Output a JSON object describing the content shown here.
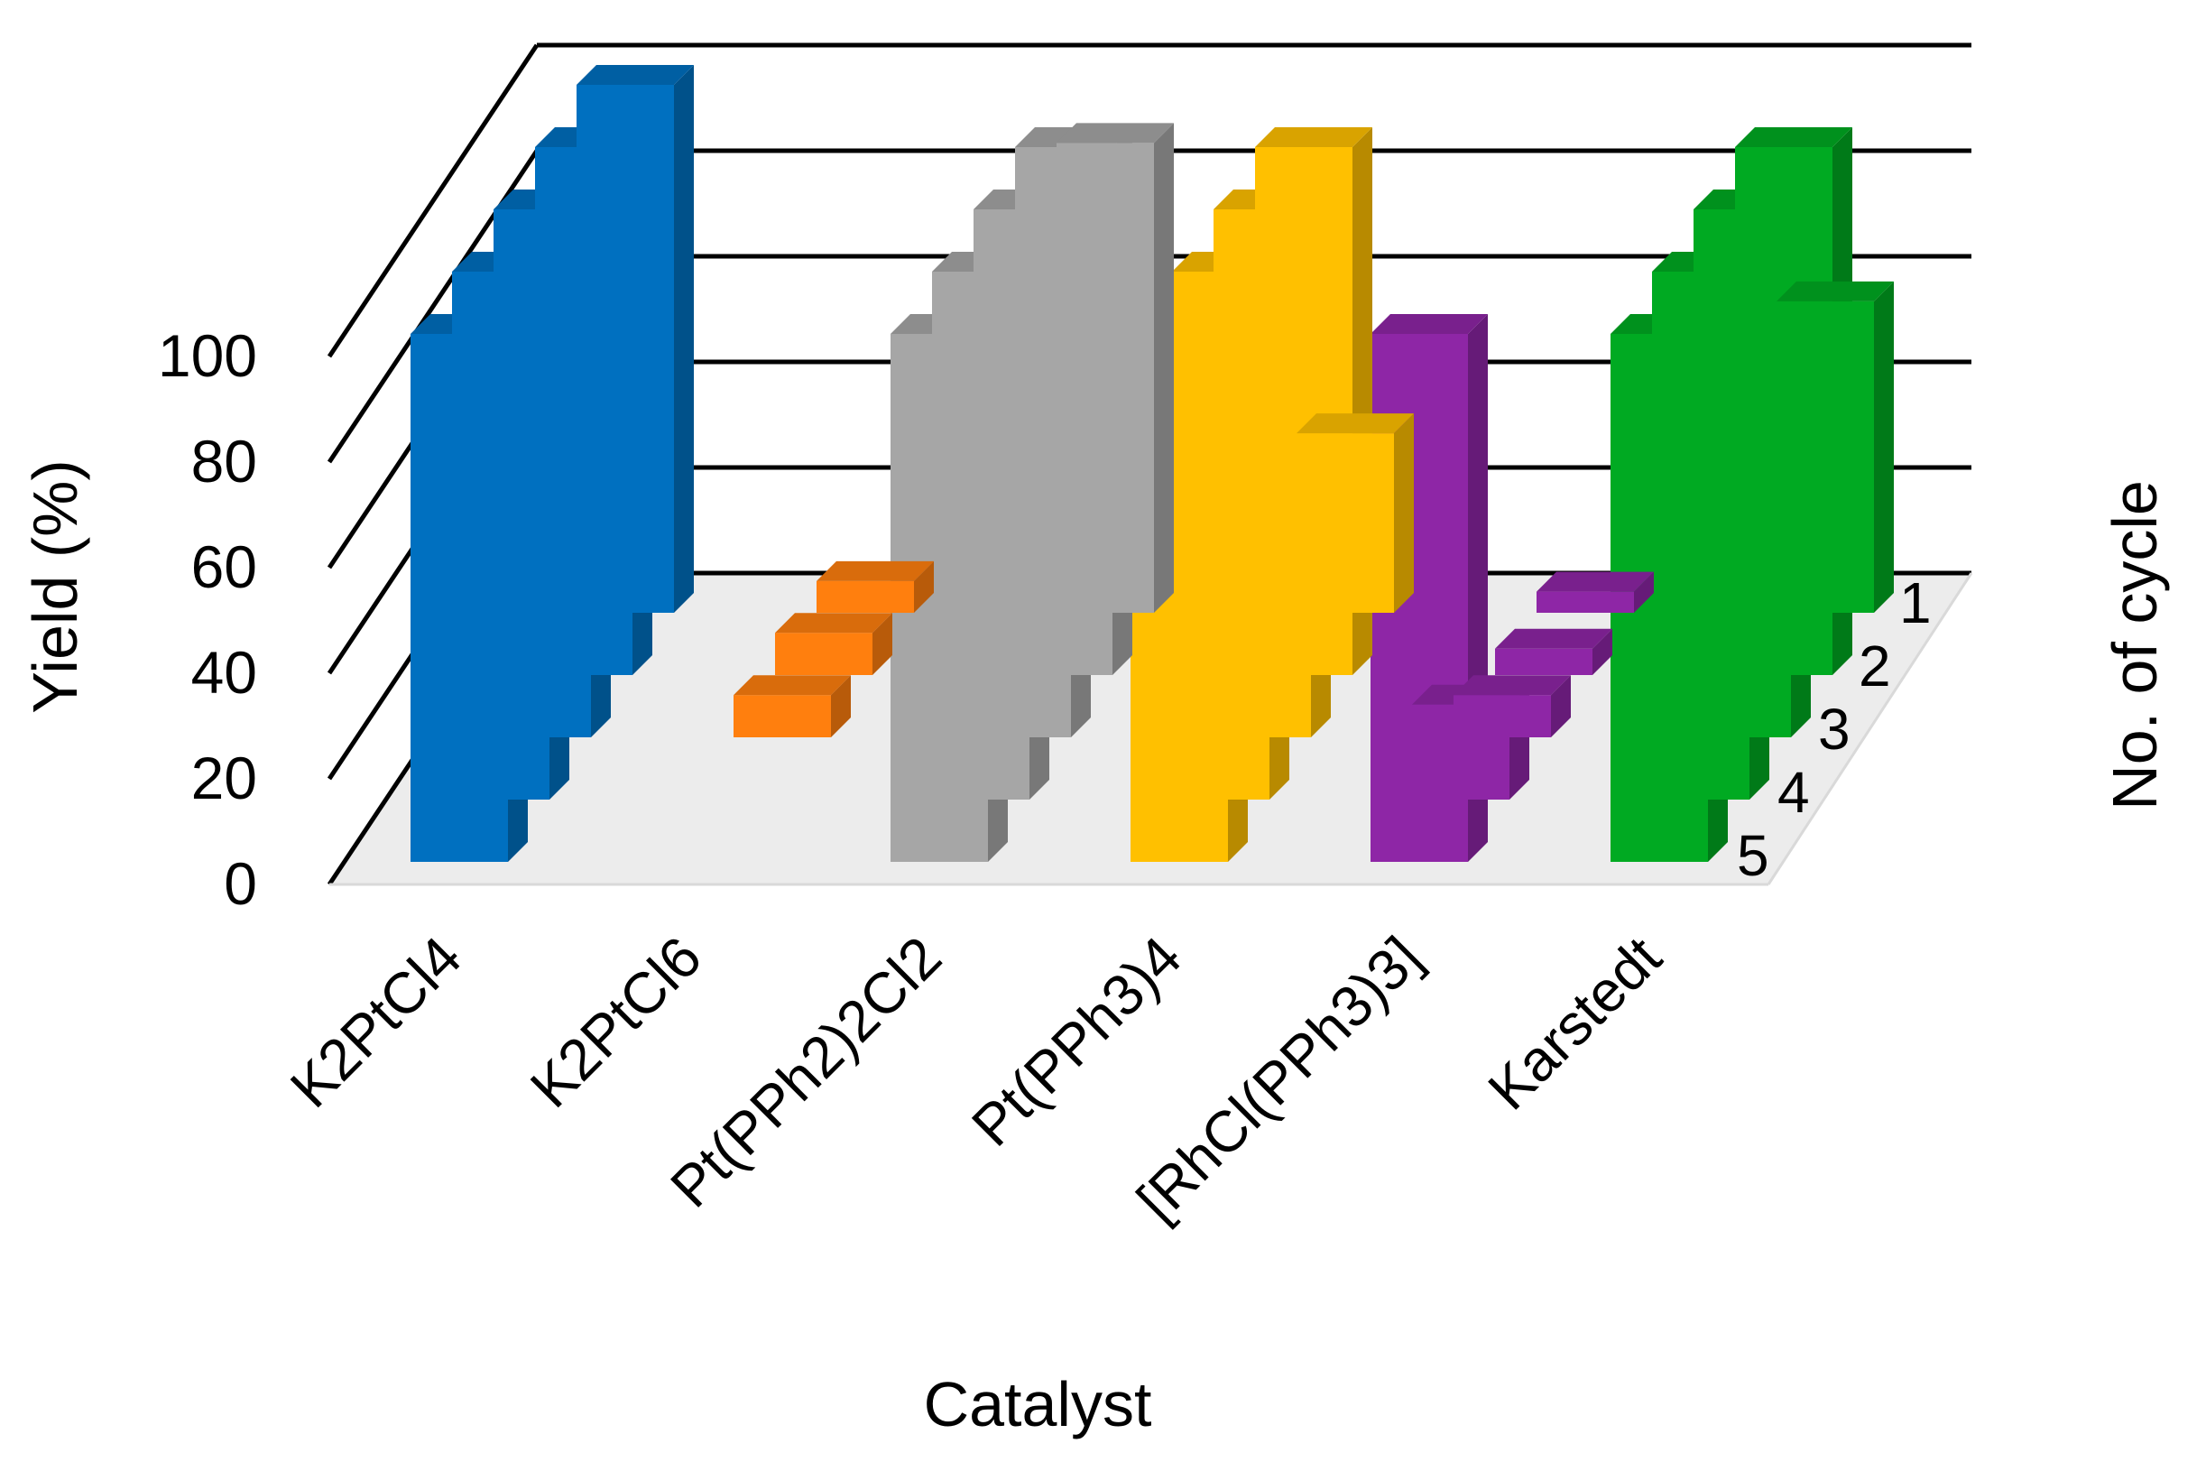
{
  "chart_data": {
    "type": "bar",
    "subtype": "3d-column",
    "title": "",
    "xlabel": "Catalyst",
    "ylabel": "Yield (%)",
    "zlabel": "No. of cycle",
    "ylim": [
      0,
      100
    ],
    "yticks": [
      "0",
      "20",
      "40",
      "60",
      "80",
      "100"
    ],
    "grid": true,
    "categories": [
      "K2PtCl4",
      "K2PtCl6",
      "Pt(PPh2)2Cl2",
      "Pt(PPh3)4",
      "[RhCl(PPh3)3]",
      "Karstedt"
    ],
    "colors": [
      "#0070c0",
      "#ff7f0e",
      "#a6a6a6",
      "#ffc000",
      "#8e26a6",
      "#00aa22"
    ],
    "series": [
      {
        "name": "1",
        "values": [
          100,
          0,
          100,
          100,
          100,
          100
        ]
      },
      {
        "name": "2",
        "values": [
          100,
          0,
          100,
          100,
          18,
          100
        ]
      },
      {
        "name": "3",
        "values": [
          100,
          8,
          100,
          100,
          8,
          100
        ]
      },
      {
        "name": "4",
        "values": [
          100,
          8,
          100,
          100,
          5,
          100
        ]
      },
      {
        "name": "5",
        "values": [
          100,
          6,
          89,
          34,
          4,
          59
        ]
      }
    ]
  }
}
